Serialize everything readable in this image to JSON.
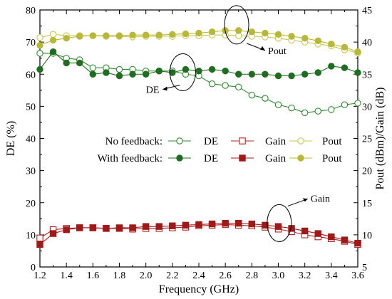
{
  "chart_data": {
    "type": "line",
    "xlabel": "Frequency (GHz)",
    "ylabel_left": "DE (%)",
    "ylabel_right": "Pout (dBm)/Gain (dB)",
    "xlim": [
      1.2,
      3.6
    ],
    "ylim_left": [
      0,
      80
    ],
    "ylim_right": [
      5,
      45
    ],
    "grid": false,
    "x_ticks": [
      "1.2",
      "1.4",
      "1.6",
      "1.8",
      "2.0",
      "2.2",
      "2.4",
      "2.6",
      "2.8",
      "3.0",
      "3.2",
      "3.4",
      "3.6"
    ],
    "y_ticks_left": [
      "0",
      "10",
      "20",
      "30",
      "40",
      "50",
      "60",
      "70",
      "80"
    ],
    "y_ticks_right": [
      "5",
      "10",
      "15",
      "20",
      "25",
      "30",
      "35",
      "40",
      "45"
    ],
    "x": [
      1.2,
      1.3,
      1.4,
      1.5,
      1.6,
      1.7,
      1.8,
      1.9,
      2.0,
      2.1,
      2.2,
      2.3,
      2.4,
      2.5,
      2.6,
      2.7,
      2.8,
      2.9,
      3.0,
      3.1,
      3.2,
      3.3,
      3.4,
      3.5,
      3.6
    ],
    "series": [
      {
        "name": "DE",
        "group": "No feedback",
        "axis": "left",
        "marker": "circle-open",
        "color": "#2e8b2e",
        "values": [
          66.5,
          66.5,
          65,
          64.5,
          62,
          62,
          61.5,
          61.5,
          61,
          61,
          61,
          60,
          59.5,
          57,
          56.5,
          56,
          53.5,
          52.5,
          50.5,
          49.5,
          48,
          48.5,
          49,
          50.5,
          51
        ]
      },
      {
        "name": "DE",
        "group": "With feedback",
        "axis": "left",
        "marker": "circle-filled",
        "color": "#1f6e1f",
        "values": [
          61.5,
          67,
          63.5,
          63.5,
          60,
          60.5,
          59.5,
          60,
          60,
          61,
          60.5,
          61.5,
          61,
          61.5,
          61,
          60,
          60,
          60,
          59.5,
          59.5,
          60,
          60.5,
          62.5,
          62,
          60.5
        ]
      },
      {
        "name": "Gain",
        "group": "No feedback",
        "axis": "right",
        "marker": "square-open",
        "color": "#b22222",
        "values": [
          9.5,
          10.8,
          11.0,
          11.1,
          11.1,
          11.0,
          11.0,
          10.9,
          11.0,
          11.0,
          11.1,
          11.2,
          11.4,
          11.5,
          11.6,
          11.5,
          11.4,
          11.2,
          10.9,
          10.5,
          10.0,
          9.7,
          9.4,
          9.0,
          8.5
        ]
      },
      {
        "name": "Gain",
        "group": "With feedback",
        "axis": "right",
        "marker": "square-filled",
        "color": "#a01818",
        "values": [
          8.5,
          10.2,
          10.8,
          11.1,
          11.1,
          11.0,
          11.1,
          11.1,
          11.3,
          11.3,
          11.4,
          11.5,
          11.6,
          11.7,
          11.8,
          11.8,
          11.7,
          11.5,
          11.3,
          11.0,
          10.6,
          10.2,
          9.7,
          9.2,
          8.7
        ]
      },
      {
        "name": "Pout",
        "group": "No feedback",
        "axis": "right",
        "marker": "circle-open",
        "color": "#c8c850",
        "values": [
          40.7,
          41.2,
          41.0,
          41.0,
          41.0,
          40.9,
          40.9,
          40.8,
          40.9,
          40.9,
          40.9,
          41.0,
          41.0,
          41.1,
          41.1,
          41.0,
          40.9,
          40.8,
          40.6,
          40.3,
          40.0,
          39.7,
          39.4,
          38.8,
          38.3
        ]
      },
      {
        "name": "Pout",
        "group": "With feedback",
        "axis": "right",
        "marker": "circle-filled",
        "color": "#b8b838",
        "values": [
          39.5,
          40.3,
          40.6,
          40.9,
          41.0,
          41.0,
          41.0,
          41.1,
          41.1,
          41.1,
          41.2,
          41.3,
          41.4,
          41.6,
          41.8,
          41.8,
          41.6,
          41.4,
          41.2,
          40.9,
          40.6,
          40.2,
          39.7,
          39.2,
          38.5
        ]
      }
    ],
    "legend": {
      "placement": "center",
      "row_labels": [
        "No feedback:",
        "With feedback:"
      ],
      "entries": [
        "DE",
        "Gain",
        "Pout"
      ]
    },
    "annotations": [
      {
        "text": "DE",
        "x": 2.3,
        "y_left": 61.5
      },
      {
        "text": "Pout",
        "x": 2.75,
        "y_right": 41.8
      },
      {
        "text": "Gain",
        "x": 3.05,
        "y_right": 11.6
      }
    ]
  }
}
